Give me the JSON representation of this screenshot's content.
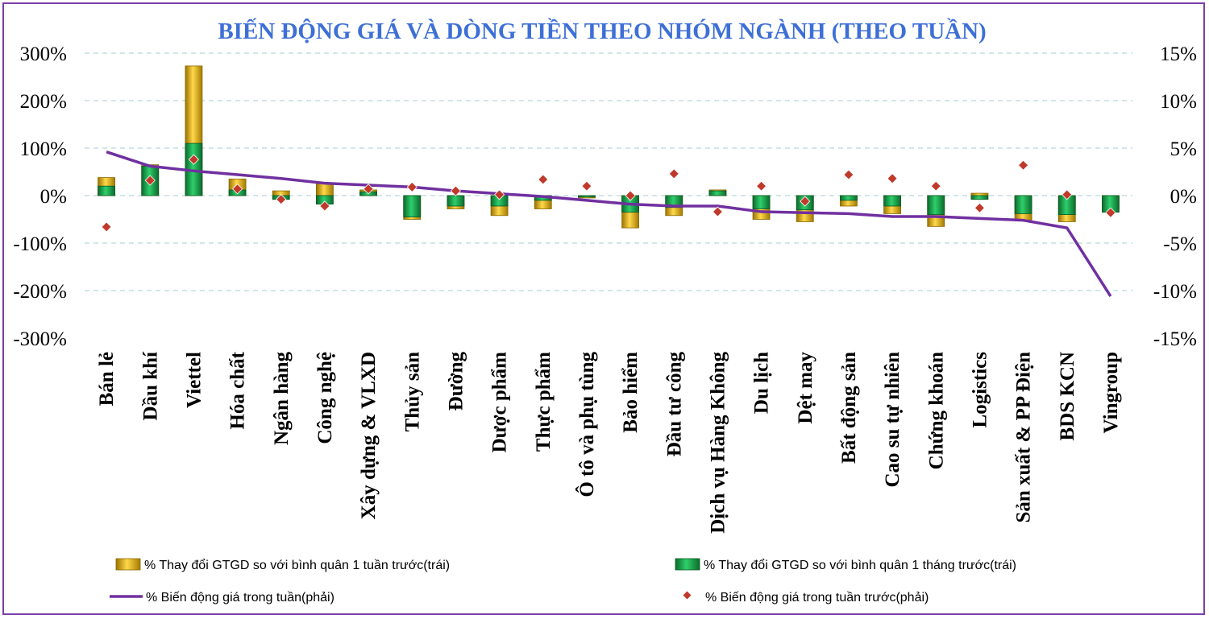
{
  "chart_data": {
    "type": "bar",
    "title": "BIẾN ĐỘNG GIÁ VÀ DÒNG TIỀN THEO NHÓM NGÀNH (THEO TUẦN)",
    "categories": [
      "Bán lẻ",
      "Dầu khí",
      "Viettel",
      "Hóa chất",
      "Ngân hàng",
      "Công nghệ",
      "Xây dựng & VLXD",
      "Thủy sản",
      "Đường",
      "Dược phẩm",
      "Thực phẩm",
      "Ô tô và phụ tùng",
      "Bảo hiểm",
      "Đầu tư công",
      "Dịch vụ Hàng Không",
      "Du lịch",
      "Dệt may",
      "Bất động sản",
      "Cao su tự nhiên",
      "Chứng khoán",
      "Logistics",
      "Sản xuất & PP Điện",
      "BDS KCN",
      "Vingroup"
    ],
    "left_axis": {
      "min": -300,
      "max": 300,
      "step": 100,
      "ticks": [
        "300%",
        "200%",
        "100%",
        "0%",
        "-100%",
        "-200%",
        "-300%"
      ]
    },
    "right_axis": {
      "min": -15,
      "max": 15,
      "step": 5,
      "ticks": [
        "15%",
        "10%",
        "5%",
        "0%",
        "-5%",
        "-10%",
        "-15%"
      ]
    },
    "series": [
      {
        "name": "% Thay đổi GTGD so với bình quân 1 tuần trước(trái)",
        "type": "bar",
        "axis": "left",
        "color": "#e8b400",
        "values": [
          38,
          65,
          273,
          35,
          10,
          25,
          12,
          -50,
          -28,
          -42,
          -28,
          -5,
          -68,
          -42,
          12,
          -50,
          -55,
          -22,
          -38,
          -65,
          5,
          -52,
          -55,
          -28
        ]
      },
      {
        "name": "% Thay đổi GTGD so với bình quân 1 tháng trước(trái)",
        "type": "bar",
        "axis": "left",
        "color": "#19a34a",
        "values": [
          20,
          62,
          110,
          12,
          -8,
          -18,
          8,
          -45,
          -22,
          -22,
          -10,
          -3,
          -35,
          -25,
          10,
          -28,
          -30,
          -10,
          -22,
          -40,
          -8,
          -38,
          -40,
          -35
        ]
      },
      {
        "name": "% Biến động giá trong tuần(phải)",
        "type": "line",
        "axis": "right",
        "color": "#7030a0",
        "values": [
          4.6,
          3.1,
          2.6,
          2.2,
          1.8,
          1.3,
          1.1,
          0.9,
          0.5,
          0.2,
          -0.1,
          -0.5,
          -0.9,
          -1.1,
          -1.1,
          -1.7,
          -1.8,
          -1.9,
          -2.2,
          -2.2,
          -2.4,
          -2.6,
          -3.4,
          -10.6
        ]
      },
      {
        "name": "% Biến động giá trong tuần trước(phải)",
        "type": "scatter",
        "axis": "right",
        "color": "#c0392b",
        "values": [
          -3.3,
          1.6,
          3.8,
          0.7,
          -0.4,
          -1.1,
          0.7,
          0.9,
          0.5,
          0.1,
          1.7,
          1.0,
          0.0,
          2.3,
          -1.7,
          1.0,
          -0.6,
          2.2,
          1.8,
          1.0,
          -1.3,
          3.2,
          0.1,
          -1.8
        ]
      }
    ]
  }
}
